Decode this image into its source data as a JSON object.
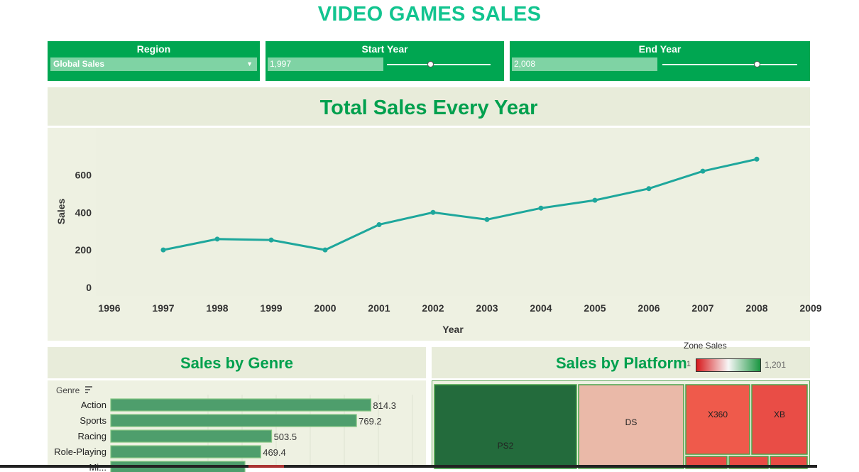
{
  "page": {
    "title": "VIDEO GAMES SALES"
  },
  "filters": {
    "region": {
      "label": "Region",
      "value": "Global Sales"
    },
    "start_year": {
      "label": "Start Year",
      "value": "1,997",
      "level": 0.33
    },
    "end_year": {
      "label": "End Year",
      "value": "2,008",
      "level": 0.7
    }
  },
  "line_panel": {
    "title": "Total Sales Every Year"
  },
  "genre_panel": {
    "title": "Sales by Genre",
    "header": "Genre"
  },
  "platform_panel": {
    "title": "Sales by Platform",
    "legend": {
      "title": "Zone Sales",
      "min": "1",
      "max": "1,201"
    }
  },
  "chart_data": [
    {
      "type": "line",
      "title": "Total Sales Every Year",
      "xlabel": "Year",
      "ylabel": "Sales",
      "x_ticks": [
        "1996",
        "1997",
        "1998",
        "1999",
        "2000",
        "2001",
        "2002",
        "2003",
        "2004",
        "2005",
        "2006",
        "2007",
        "2008",
        "2009"
      ],
      "y_ticks": [
        "0",
        "200",
        "400",
        "600"
      ],
      "xlim": [
        1996,
        2009
      ],
      "ylim": [
        0,
        700
      ],
      "color": "#1ea79c",
      "grid": false,
      "series": [
        {
          "x": [
            1997,
            1998,
            1999,
            2000,
            2001,
            2002,
            2003,
            2004,
            2005,
            2006,
            2007,
            2008
          ],
          "values": [
            200,
            258,
            253,
            200,
            335,
            400,
            362,
            423,
            465,
            527,
            620,
            684
          ]
        }
      ]
    },
    {
      "type": "bar",
      "orientation": "horizontal",
      "title": "Sales by Genre",
      "categories": [
        "Action",
        "Sports",
        "Racing",
        "Role-Playing",
        "Mi..."
      ],
      "values": [
        814.3,
        769.2,
        503.5,
        469.4,
        420
      ],
      "labels": [
        "814.3",
        "769.2",
        "503.5",
        "469.4",
        ""
      ],
      "xlim": [
        0,
        1000
      ],
      "color": "#4e9e6c"
    },
    {
      "type": "treemap",
      "title": "Sales by Platform",
      "color_scale": [
        "#d7191c",
        "#f7f7f7",
        "#1a9641"
      ],
      "tiles": [
        {
          "label": "PS2",
          "color": "#236b3c"
        },
        {
          "label": "DS",
          "color": "#eab9a8"
        },
        {
          "label": "X360",
          "color": "#ef5a4b"
        },
        {
          "label": "XB",
          "color": "#e94d46"
        }
      ]
    }
  ]
}
